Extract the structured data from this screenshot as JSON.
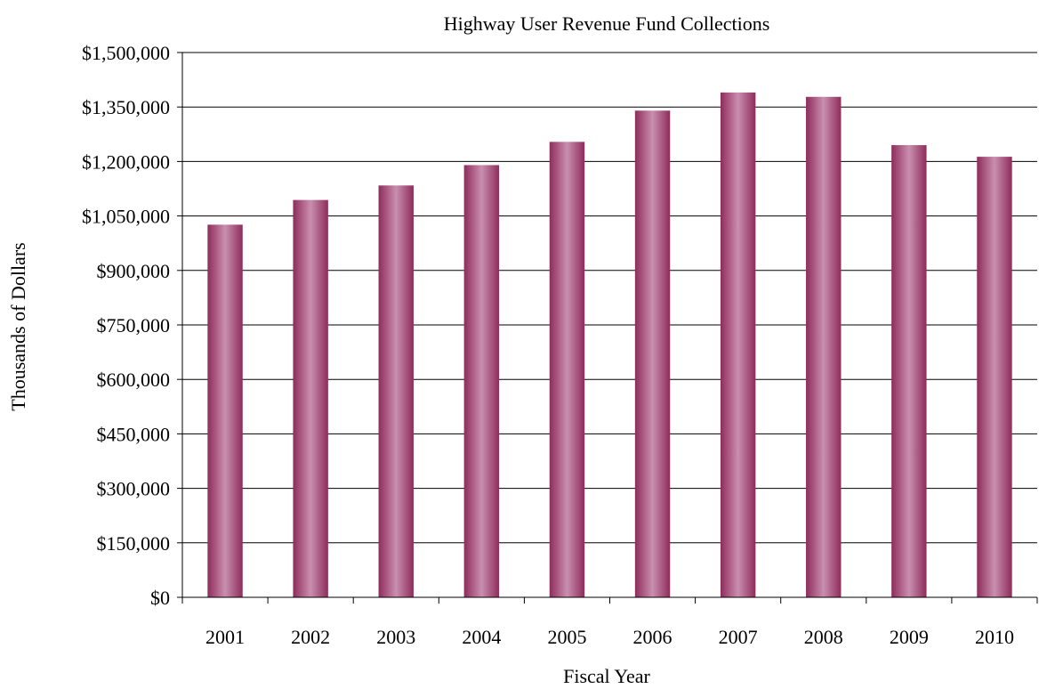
{
  "chart_data": {
    "type": "bar",
    "title": "Highway User Revenue Fund Collections",
    "xlabel": "Fiscal Year",
    "ylabel": "Thousands of Dollars",
    "categories": [
      "2001",
      "2002",
      "2003",
      "2004",
      "2005",
      "2006",
      "2007",
      "2008",
      "2009",
      "2010"
    ],
    "values": [
      1026000,
      1094000,
      1134000,
      1190000,
      1254000,
      1340000,
      1390000,
      1378000,
      1245000,
      1213000
    ],
    "ylim": [
      0,
      1500000
    ],
    "yticks": [
      0,
      150000,
      300000,
      450000,
      600000,
      750000,
      900000,
      1050000,
      1200000,
      1350000,
      1500000
    ],
    "ytick_labels": [
      "$0",
      "$150,000",
      "$300,000",
      "$450,000",
      "$600,000",
      "$750,000",
      "$900,000",
      "$1,050,000",
      "$1,200,000",
      "$1,350,000",
      "$1,500,000"
    ],
    "grid": true,
    "legend": "none",
    "colors": {
      "bar_edge": "#8e2c5c",
      "bar_highlight": "#c98fae",
      "grid": "#000000",
      "axis": "#000000"
    }
  }
}
